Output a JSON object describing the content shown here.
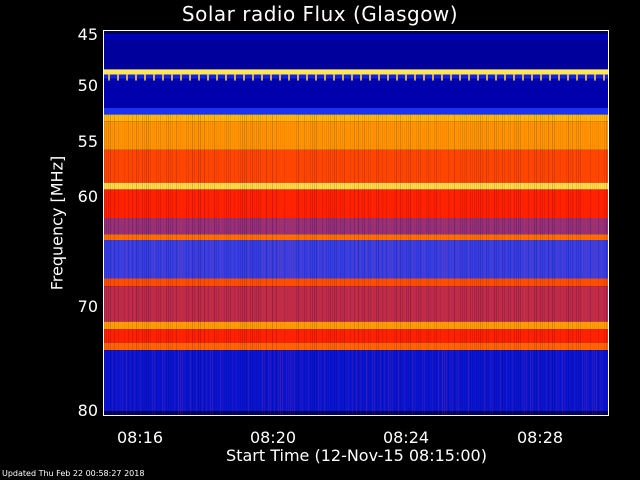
{
  "chart_data": {
    "type": "heatmap",
    "title": "Solar radio Flux (Glasgow)",
    "ylabel": "Frequency [MHz]",
    "xlabel": "Start Time (12-Nov-15 08:15:00)",
    "y_ticks": [
      "45",
      "50",
      "55",
      "60",
      "70",
      "80"
    ],
    "x_ticks": [
      "08:16",
      "08:20",
      "08:24",
      "08:28"
    ],
    "ylim": [
      45,
      80
    ],
    "xlim": [
      "08:15:00",
      "08:30:00"
    ],
    "colormap": [
      "#000040",
      "#0000c0",
      "#2040ff",
      "#ff2000",
      "#ff6000",
      "#ffb000",
      "#ffff80"
    ],
    "frequency_bands": [
      {
        "from": 45.0,
        "to": 45.6,
        "level": 0.15
      },
      {
        "from": 45.6,
        "to": 48.4,
        "level": 0.12
      },
      {
        "from": 48.4,
        "to": 48.9,
        "level": 0.95
      },
      {
        "from": 48.9,
        "to": 49.3,
        "level": 0.25
      },
      {
        "from": 49.3,
        "to": 52.0,
        "level": 0.14
      },
      {
        "from": 52.0,
        "to": 52.6,
        "level": 0.3
      },
      {
        "from": 52.6,
        "to": 53.2,
        "level": 0.85
      },
      {
        "from": 53.2,
        "to": 55.8,
        "level": 0.78
      },
      {
        "from": 55.8,
        "to": 58.8,
        "level": 0.6
      },
      {
        "from": 58.8,
        "to": 59.4,
        "level": 0.93
      },
      {
        "from": 59.4,
        "to": 62.0,
        "level": 0.5
      },
      {
        "from": 62.0,
        "to": 63.5,
        "level": 0.42
      },
      {
        "from": 63.5,
        "to": 64.0,
        "level": 0.7
      },
      {
        "from": 64.0,
        "to": 67.5,
        "level": 0.35
      },
      {
        "from": 67.5,
        "to": 68.2,
        "level": 0.62
      },
      {
        "from": 68.2,
        "to": 71.5,
        "level": 0.45
      },
      {
        "from": 71.5,
        "to": 72.2,
        "level": 0.8
      },
      {
        "from": 72.2,
        "to": 73.5,
        "level": 0.5
      },
      {
        "from": 73.5,
        "to": 74.2,
        "level": 0.68
      },
      {
        "from": 74.2,
        "to": 80.0,
        "level": 0.22
      }
    ]
  },
  "footer": {
    "updated": "Updated Thu Feb 22 00:58:27 2018"
  }
}
